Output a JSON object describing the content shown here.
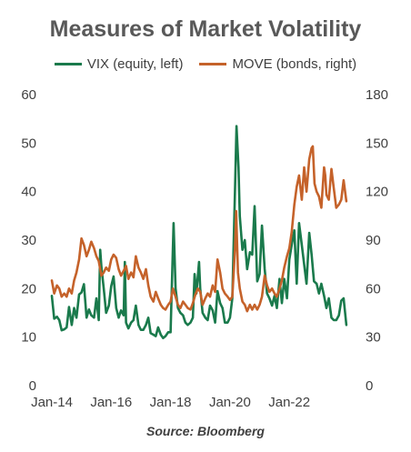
{
  "chart_data": {
    "type": "line",
    "title": "Measures of Market Volatility",
    "source": "Source: Bloomberg",
    "left_axis": {
      "ylim": [
        0,
        60
      ],
      "ticks": [
        "0",
        "10",
        "20",
        "30",
        "40",
        "50",
        "60"
      ]
    },
    "right_axis": {
      "ylim": [
        0,
        180
      ],
      "ticks": [
        "0",
        "30",
        "60",
        "90",
        "120",
        "150",
        "180"
      ]
    },
    "x_axis": {
      "xlim": [
        2014.0,
        2024.2
      ],
      "ticks": [
        {
          "label": "Jan-14",
          "x": 2014.0
        },
        {
          "label": "Jan-16",
          "x": 2016.0
        },
        {
          "label": "Jan-18",
          "x": 2018.0
        },
        {
          "label": "Jan-20",
          "x": 2020.0
        },
        {
          "label": "Jan-22",
          "x": 2022.0
        }
      ]
    },
    "grid": false,
    "legend_position": "top",
    "series": [
      {
        "name": "VIX (equity, left)",
        "axis": "left",
        "color": "#1a7a4c",
        "points": [
          [
            2014.0,
            18.5
          ],
          [
            2014.08,
            13.8
          ],
          [
            2014.17,
            14.2
          ],
          [
            2014.25,
            13.5
          ],
          [
            2014.33,
            11.4
          ],
          [
            2014.42,
            11.6
          ],
          [
            2014.5,
            12.0
          ],
          [
            2014.58,
            16.2
          ],
          [
            2014.67,
            12.5
          ],
          [
            2014.75,
            16.0
          ],
          [
            2014.83,
            14.0
          ],
          [
            2014.92,
            18.8
          ],
          [
            2015.0,
            19.2
          ],
          [
            2015.08,
            20.9
          ],
          [
            2015.17,
            14.0
          ],
          [
            2015.25,
            15.7
          ],
          [
            2015.33,
            14.5
          ],
          [
            2015.42,
            14.0
          ],
          [
            2015.5,
            18.0
          ],
          [
            2015.58,
            13.5
          ],
          [
            2015.63,
            28.0
          ],
          [
            2015.67,
            24.5
          ],
          [
            2015.75,
            20.0
          ],
          [
            2015.83,
            15.0
          ],
          [
            2015.92,
            16.5
          ],
          [
            2016.0,
            20.5
          ],
          [
            2016.08,
            22.5
          ],
          [
            2016.17,
            16.0
          ],
          [
            2016.25,
            14.0
          ],
          [
            2016.33,
            15.5
          ],
          [
            2016.42,
            14.5
          ],
          [
            2016.46,
            25.5
          ],
          [
            2016.5,
            13.0
          ],
          [
            2016.58,
            11.8
          ],
          [
            2016.67,
            13.0
          ],
          [
            2016.75,
            13.5
          ],
          [
            2016.83,
            16.5
          ],
          [
            2016.92,
            12.5
          ],
          [
            2017.0,
            11.5
          ],
          [
            2017.08,
            11.5
          ],
          [
            2017.17,
            12.5
          ],
          [
            2017.25,
            14.0
          ],
          [
            2017.33,
            10.8
          ],
          [
            2017.42,
            10.5
          ],
          [
            2017.5,
            10.2
          ],
          [
            2017.58,
            12.0
          ],
          [
            2017.67,
            10.5
          ],
          [
            2017.75,
            9.8
          ],
          [
            2017.83,
            10.2
          ],
          [
            2017.92,
            11.0
          ],
          [
            2018.0,
            11.0
          ],
          [
            2018.1,
            33.5
          ],
          [
            2018.17,
            20.0
          ],
          [
            2018.25,
            16.0
          ],
          [
            2018.33,
            15.0
          ],
          [
            2018.42,
            14.5
          ],
          [
            2018.5,
            13.0
          ],
          [
            2018.58,
            12.5
          ],
          [
            2018.67,
            13.0
          ],
          [
            2018.75,
            14.0
          ],
          [
            2018.81,
            23.0
          ],
          [
            2018.87,
            19.0
          ],
          [
            2018.96,
            25.5
          ],
          [
            2019.0,
            20.0
          ],
          [
            2019.08,
            15.0
          ],
          [
            2019.17,
            14.0
          ],
          [
            2019.25,
            13.5
          ],
          [
            2019.33,
            16.5
          ],
          [
            2019.42,
            15.5
          ],
          [
            2019.5,
            13.0
          ],
          [
            2019.58,
            19.5
          ],
          [
            2019.67,
            17.0
          ],
          [
            2019.75,
            16.0
          ],
          [
            2019.83,
            13.0
          ],
          [
            2019.92,
            13.0
          ],
          [
            2020.0,
            14.0
          ],
          [
            2020.08,
            18.0
          ],
          [
            2020.17,
            40.0
          ],
          [
            2020.22,
            53.5
          ],
          [
            2020.29,
            45.0
          ],
          [
            2020.33,
            35.0
          ],
          [
            2020.42,
            28.0
          ],
          [
            2020.5,
            30.0
          ],
          [
            2020.58,
            24.0
          ],
          [
            2020.67,
            27.5
          ],
          [
            2020.75,
            27.0
          ],
          [
            2020.83,
            37.0
          ],
          [
            2020.92,
            21.5
          ],
          [
            2021.0,
            23.0
          ],
          [
            2021.08,
            33.0
          ],
          [
            2021.17,
            24.0
          ],
          [
            2021.25,
            19.0
          ],
          [
            2021.33,
            18.0
          ],
          [
            2021.42,
            16.5
          ],
          [
            2021.5,
            18.5
          ],
          [
            2021.58,
            16.0
          ],
          [
            2021.67,
            22.0
          ],
          [
            2021.75,
            17.0
          ],
          [
            2021.83,
            22.0
          ],
          [
            2021.92,
            18.0
          ],
          [
            2022.0,
            26.0
          ],
          [
            2022.08,
            29.0
          ],
          [
            2022.17,
            32.0
          ],
          [
            2022.25,
            21.0
          ],
          [
            2022.33,
            33.5
          ],
          [
            2022.42,
            29.0
          ],
          [
            2022.5,
            25.0
          ],
          [
            2022.58,
            21.0
          ],
          [
            2022.67,
            31.5
          ],
          [
            2022.75,
            27.0
          ],
          [
            2022.83,
            21.5
          ],
          [
            2022.92,
            21.0
          ],
          [
            2023.0,
            19.0
          ],
          [
            2023.08,
            21.0
          ],
          [
            2023.17,
            18.5
          ],
          [
            2023.25,
            16.0
          ],
          [
            2023.33,
            18.0
          ],
          [
            2023.42,
            14.0
          ],
          [
            2023.5,
            13.5
          ],
          [
            2023.58,
            13.5
          ],
          [
            2023.67,
            14.5
          ],
          [
            2023.75,
            17.5
          ],
          [
            2023.83,
            18.0
          ],
          [
            2023.92,
            12.5
          ]
        ]
      },
      {
        "name": "MOVE (bonds, right)",
        "axis": "right",
        "color": "#c5622a",
        "points": [
          [
            2014.0,
            65
          ],
          [
            2014.08,
            57
          ],
          [
            2014.17,
            62
          ],
          [
            2014.25,
            60
          ],
          [
            2014.33,
            55
          ],
          [
            2014.42,
            57
          ],
          [
            2014.5,
            55
          ],
          [
            2014.58,
            60
          ],
          [
            2014.67,
            57
          ],
          [
            2014.75,
            65
          ],
          [
            2014.83,
            70
          ],
          [
            2014.92,
            78
          ],
          [
            2015.0,
            91
          ],
          [
            2015.08,
            87
          ],
          [
            2015.17,
            80
          ],
          [
            2015.25,
            84
          ],
          [
            2015.33,
            89
          ],
          [
            2015.42,
            85
          ],
          [
            2015.5,
            80
          ],
          [
            2015.58,
            77
          ],
          [
            2015.67,
            68
          ],
          [
            2015.75,
            70
          ],
          [
            2015.83,
            73
          ],
          [
            2015.92,
            71
          ],
          [
            2016.0,
            78
          ],
          [
            2016.08,
            81
          ],
          [
            2016.17,
            79
          ],
          [
            2016.25,
            72
          ],
          [
            2016.33,
            68
          ],
          [
            2016.42,
            71
          ],
          [
            2016.5,
            74
          ],
          [
            2016.58,
            66
          ],
          [
            2016.67,
            70
          ],
          [
            2016.75,
            67
          ],
          [
            2016.83,
            80
          ],
          [
            2016.92,
            73
          ],
          [
            2017.0,
            70
          ],
          [
            2017.08,
            66
          ],
          [
            2017.17,
            72
          ],
          [
            2017.25,
            62
          ],
          [
            2017.33,
            55
          ],
          [
            2017.42,
            52
          ],
          [
            2017.5,
            58
          ],
          [
            2017.58,
            54
          ],
          [
            2017.67,
            50
          ],
          [
            2017.75,
            48
          ],
          [
            2017.83,
            47
          ],
          [
            2017.92,
            50
          ],
          [
            2018.0,
            52
          ],
          [
            2018.08,
            60
          ],
          [
            2018.17,
            55
          ],
          [
            2018.25,
            50
          ],
          [
            2018.33,
            48
          ],
          [
            2018.42,
            52
          ],
          [
            2018.5,
            50
          ],
          [
            2018.58,
            48
          ],
          [
            2018.67,
            47
          ],
          [
            2018.75,
            51
          ],
          [
            2018.83,
            56
          ],
          [
            2018.92,
            60
          ],
          [
            2019.0,
            58
          ],
          [
            2019.08,
            50
          ],
          [
            2019.17,
            54
          ],
          [
            2019.25,
            57
          ],
          [
            2019.33,
            55
          ],
          [
            2019.42,
            62
          ],
          [
            2019.5,
            58
          ],
          [
            2019.58,
            78
          ],
          [
            2019.67,
            70
          ],
          [
            2019.75,
            60
          ],
          [
            2019.83,
            57
          ],
          [
            2019.92,
            55
          ],
          [
            2020.0,
            53
          ],
          [
            2020.08,
            55
          ],
          [
            2020.17,
            84
          ],
          [
            2020.21,
            108
          ],
          [
            2020.27,
            70
          ],
          [
            2020.33,
            60
          ],
          [
            2020.42,
            52
          ],
          [
            2020.5,
            50
          ],
          [
            2020.58,
            46
          ],
          [
            2020.67,
            50
          ],
          [
            2020.75,
            47
          ],
          [
            2020.83,
            50
          ],
          [
            2020.92,
            47
          ],
          [
            2021.0,
            50
          ],
          [
            2021.08,
            55
          ],
          [
            2021.17,
            68
          ],
          [
            2021.25,
            62
          ],
          [
            2021.33,
            58
          ],
          [
            2021.42,
            60
          ],
          [
            2021.5,
            57
          ],
          [
            2021.58,
            55
          ],
          [
            2021.67,
            60
          ],
          [
            2021.75,
            65
          ],
          [
            2021.83,
            73
          ],
          [
            2021.92,
            80
          ],
          [
            2022.0,
            85
          ],
          [
            2022.08,
            95
          ],
          [
            2022.17,
            112
          ],
          [
            2022.25,
            123
          ],
          [
            2022.33,
            130
          ],
          [
            2022.42,
            115
          ],
          [
            2022.5,
            135
          ],
          [
            2022.58,
            120
          ],
          [
            2022.67,
            140
          ],
          [
            2022.75,
            147
          ],
          [
            2022.79,
            148
          ],
          [
            2022.85,
            125
          ],
          [
            2022.92,
            120
          ],
          [
            2023.0,
            117
          ],
          [
            2023.08,
            110
          ],
          [
            2023.17,
            135
          ],
          [
            2023.21,
            130
          ],
          [
            2023.25,
            118
          ],
          [
            2023.33,
            115
          ],
          [
            2023.42,
            134
          ],
          [
            2023.5,
            122
          ],
          [
            2023.58,
            110
          ],
          [
            2023.67,
            112
          ],
          [
            2023.75,
            115
          ],
          [
            2023.83,
            127
          ],
          [
            2023.92,
            114
          ]
        ]
      }
    ]
  }
}
